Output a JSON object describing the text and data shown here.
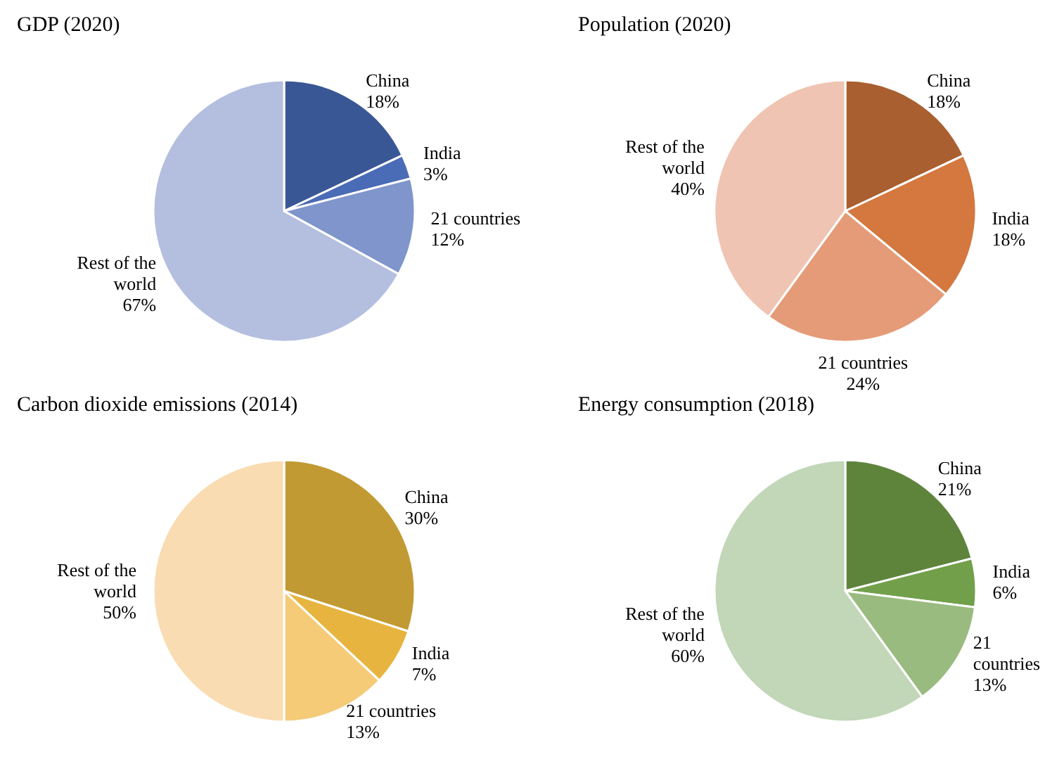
{
  "chart_data": [
    {
      "type": "pie",
      "title": "GDP (2020)",
      "categories": [
        "China",
        "India",
        "21 countries",
        "Rest of the world"
      ],
      "values": [
        18,
        3,
        12,
        67
      ],
      "value_labels": [
        "18%",
        "3%",
        "12%",
        "67%"
      ],
      "colors": [
        "#3a5795",
        "#4a6bb5",
        "#7f95cc",
        "#b4bedf"
      ]
    },
    {
      "type": "pie",
      "title": "Population (2020)",
      "categories": [
        "China",
        "India",
        "21 countries",
        "Rest of the world"
      ],
      "values": [
        18,
        18,
        24,
        40
      ],
      "value_labels": [
        "18%",
        "18%",
        "24%",
        "40%"
      ],
      "colors": [
        "#a95f30",
        "#d4783f",
        "#e59b78",
        "#efc4b2"
      ]
    },
    {
      "type": "pie",
      "title": "Carbon dioxide emissions (2014)",
      "categories": [
        "China",
        "India",
        "21 countries",
        "Rest of the world"
      ],
      "values": [
        30,
        7,
        13,
        50
      ],
      "value_labels": [
        "30%",
        "7%",
        "13%",
        "50%"
      ],
      "colors": [
        "#c29a33",
        "#e7b53f",
        "#f5cb78",
        "#f9dcb2"
      ]
    },
    {
      "type": "pie",
      "title": "Energy consumption (2018)",
      "categories": [
        "China",
        "India",
        "21 countries",
        "Rest of the world"
      ],
      "values": [
        21,
        6,
        13,
        60
      ],
      "value_labels": [
        "21%",
        "6%",
        "13%",
        "60%"
      ],
      "colors": [
        "#5e843c",
        "#72a04a",
        "#9abb7f",
        "#c2d6b8"
      ]
    }
  ]
}
